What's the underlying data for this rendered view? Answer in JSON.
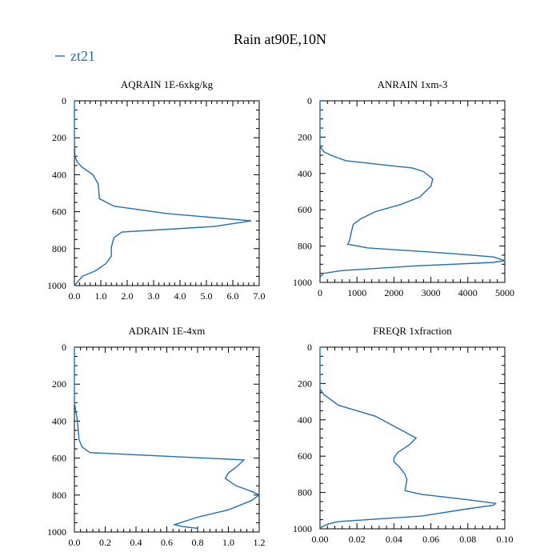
{
  "title": "Rain at90E,10N",
  "legend": [
    {
      "label": "zt21",
      "color": "#1f6fb2"
    }
  ],
  "chart_data": [
    {
      "type": "line",
      "title": "AQRAIN 1E-6xkg/kg",
      "xlim": [
        0,
        7
      ],
      "ylim": [
        1000,
        0
      ],
      "xticks": [
        "0.0",
        "1.0",
        "2.0",
        "3.0",
        "4.0",
        "5.0",
        "6.0",
        "7.0"
      ],
      "xtick_values": [
        0,
        1,
        2,
        3,
        4,
        5,
        6,
        7
      ],
      "yticks": [
        "0",
        "200",
        "400",
        "600",
        "800",
        "1000"
      ],
      "ytick_values": [
        0,
        200,
        400,
        600,
        800,
        1000
      ],
      "series": [
        {
          "color": "#1f6fb2",
          "x": [
            0,
            0,
            0.02,
            0.1,
            0.3,
            0.7,
            0.9,
            0.95,
            1.5,
            3.5,
            6.7,
            5.3,
            1.8,
            1.5,
            1.4,
            1.4,
            1.2,
            0.8,
            0.3,
            0
          ],
          "y": [
            0,
            200,
            300,
            330,
            360,
            400,
            450,
            530,
            570,
            610,
            650,
            680,
            710,
            740,
            790,
            840,
            880,
            920,
            950,
            1000
          ]
        }
      ]
    },
    {
      "type": "line",
      "title": "ANRAIN 1xm-3",
      "xlim": [
        0,
        5000
      ],
      "ylim": [
        1000,
        0
      ],
      "xticks": [
        "0",
        "1000",
        "2000",
        "3000",
        "4000",
        "5000"
      ],
      "xtick_values": [
        0,
        1000,
        2000,
        3000,
        4000,
        5000
      ],
      "yticks": [
        "0",
        "200",
        "400",
        "600",
        "800",
        "1000"
      ],
      "ytick_values": [
        0,
        200,
        400,
        600,
        800,
        1000
      ],
      "series": [
        {
          "color": "#1f6fb2",
          "x": [
            0,
            0,
            100,
            300,
            700,
            2500,
            2800,
            3050,
            3000,
            2700,
            2200,
            1500,
            1100,
            900,
            850,
            800,
            750,
            1300,
            3500,
            4700,
            5000,
            4700,
            2500,
            600,
            100,
            0
          ],
          "y": [
            0,
            250,
            280,
            300,
            330,
            370,
            390,
            430,
            470,
            530,
            570,
            610,
            650,
            680,
            720,
            770,
            790,
            810,
            840,
            860,
            880,
            890,
            910,
            935,
            950,
            970
          ]
        }
      ]
    },
    {
      "type": "line",
      "title": "ADRAIN 1E-4xm",
      "xlim": [
        0,
        1.2
      ],
      "ylim": [
        1000,
        0
      ],
      "xticks": [
        "0.0",
        "0.2",
        "0.4",
        "0.6",
        "0.8",
        "1.0",
        "1.2"
      ],
      "xtick_values": [
        0,
        0.2,
        0.4,
        0.6,
        0.8,
        1.0,
        1.2
      ],
      "yticks": [
        "0",
        "200",
        "400",
        "600",
        "800",
        "1000"
      ],
      "ytick_values": [
        0,
        200,
        400,
        600,
        800,
        1000
      ],
      "series": [
        {
          "color": "#1f6fb2",
          "x": [
            0,
            0,
            0.02,
            0.03,
            0.05,
            0.1,
            1.1,
            1.05,
            1.0,
            0.98,
            1.05,
            1.15,
            1.2,
            1.15,
            1.0,
            0.8,
            0.65,
            0.7,
            0.8
          ],
          "y": [
            0,
            300,
            400,
            500,
            540,
            570,
            610,
            650,
            680,
            710,
            750,
            780,
            800,
            830,
            880,
            920,
            960,
            970,
            980
          ]
        }
      ]
    },
    {
      "type": "line",
      "title": "FREQR 1xfraction",
      "xlim": [
        0,
        0.1
      ],
      "ylim": [
        1000,
        0
      ],
      "xticks": [
        "0.00",
        "0.02",
        "0.04",
        "0.06",
        "0.08",
        "0.10"
      ],
      "xtick_values": [
        0,
        0.02,
        0.04,
        0.06,
        0.08,
        0.1
      ],
      "yticks": [
        "0",
        "200",
        "400",
        "600",
        "800",
        "1000"
      ],
      "ytick_values": [
        0,
        200,
        400,
        600,
        800,
        1000
      ],
      "series": [
        {
          "color": "#1f6fb2",
          "x": [
            0,
            0,
            0.002,
            0.006,
            0.01,
            0.03,
            0.052,
            0.048,
            0.042,
            0.04,
            0.04,
            0.043,
            0.046,
            0.047,
            0.046,
            0.055,
            0.08,
            0.095,
            0.094,
            0.08,
            0.055,
            0.01,
            0.004,
            0.002,
            0
          ],
          "y": [
            0,
            230,
            260,
            290,
            320,
            380,
            500,
            540,
            580,
            610,
            630,
            660,
            700,
            730,
            790,
            810,
            840,
            860,
            870,
            890,
            930,
            960,
            975,
            985,
            995
          ]
        }
      ]
    }
  ]
}
